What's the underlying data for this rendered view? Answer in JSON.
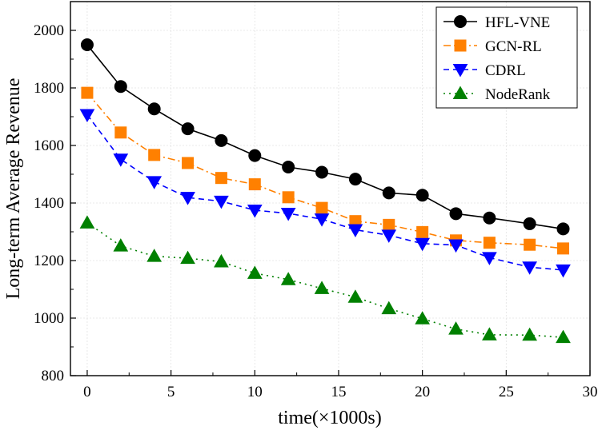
{
  "chart_data": {
    "type": "line",
    "title": "",
    "xlabel": "time(×1000s)",
    "ylabel": "Long-term Average Revenue",
    "xlim": [
      -1,
      30
    ],
    "ylim": [
      800,
      2100
    ],
    "xticks": [
      0,
      5,
      10,
      15,
      20,
      25,
      30
    ],
    "yticks": [
      800,
      1000,
      1200,
      1400,
      1600,
      1800,
      2000
    ],
    "grid": true,
    "legend_position": "top-right",
    "x": [
      0,
      2,
      4,
      6,
      8,
      10,
      12,
      14,
      16,
      18,
      20,
      22,
      24,
      26.4,
      28.4
    ],
    "series": [
      {
        "name": "HFL-VNE",
        "color": "#000000",
        "marker": "circle",
        "dash": "solid",
        "values": [
          1950,
          1805,
          1727,
          1658,
          1617,
          1565,
          1525,
          1507,
          1483,
          1435,
          1427,
          1363,
          1348,
          1328,
          1310
        ]
      },
      {
        "name": "GCN-RL",
        "color": "#ff8000",
        "marker": "square",
        "dash": "dashdot",
        "values": [
          1783,
          1645,
          1567,
          1539,
          1487,
          1465,
          1420,
          1383,
          1337,
          1324,
          1299,
          1270,
          1262,
          1255,
          1242
        ]
      },
      {
        "name": "CDRL",
        "color": "#0000ff",
        "marker": "triangle-down",
        "dash": "dashed",
        "values": [
          1707,
          1552,
          1474,
          1419,
          1406,
          1375,
          1364,
          1344,
          1307,
          1288,
          1259,
          1254,
          1210,
          1177,
          1167
        ]
      },
      {
        "name": "NodeRank",
        "color": "#008000",
        "marker": "triangle-up",
        "dash": "dotted",
        "values": [
          1331,
          1251,
          1215,
          1208,
          1196,
          1156,
          1134,
          1103,
          1073,
          1033,
          998,
          962,
          942,
          941,
          933
        ]
      }
    ]
  }
}
